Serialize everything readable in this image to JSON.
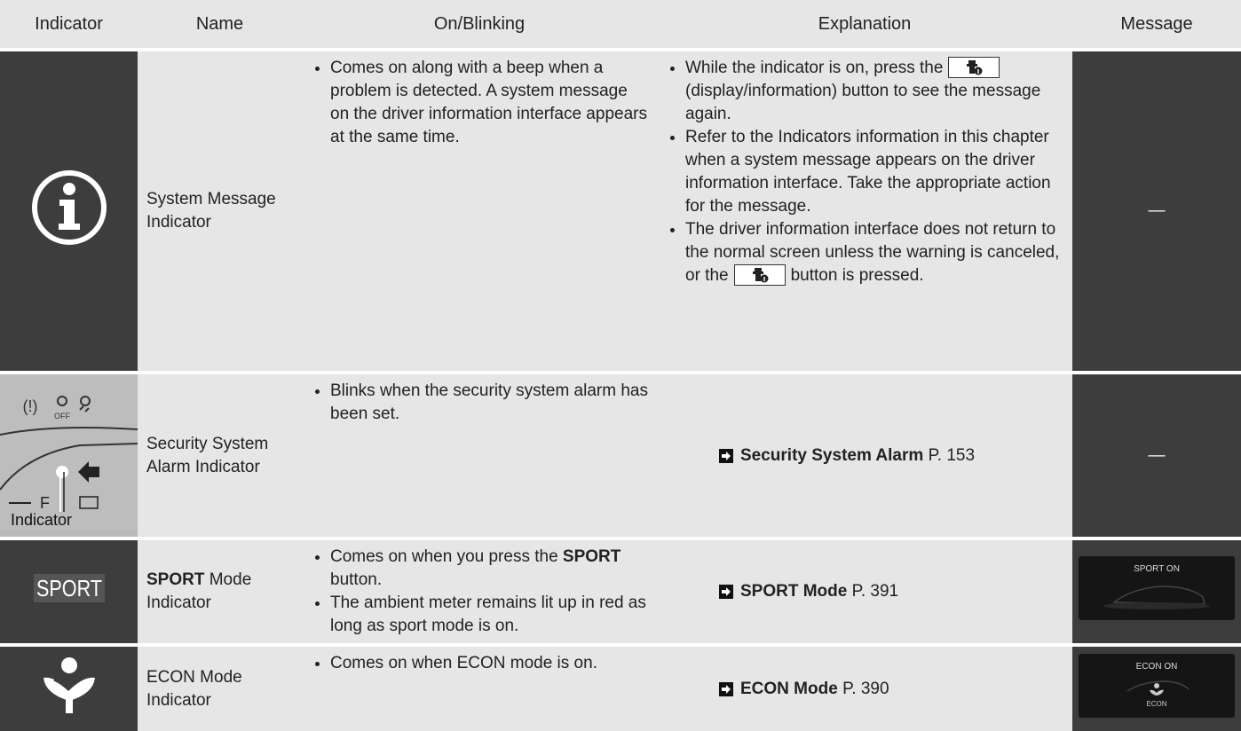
{
  "table": {
    "header": [
      "Indicator",
      "Name",
      "On/Blinking",
      "Explanation",
      "Message"
    ],
    "rows": [
      {
        "name": "System Message Indicator",
        "on_blinking": [
          "Comes on along with a beep when a problem is detected. A system message on the driver information interface appears at the same time."
        ],
        "explanation": [
          [
            "While the indicator is on, press the",
            "(display/information) button to see the message again."
          ],
          [
            "Refer to the Indicators information in this chapter when a system message appears on the driver information interface. Take the appropriate action for the message."
          ],
          [
            "The driver information interface does not return to the normal screen unless the warning is canceled, or the",
            "button is pressed."
          ]
        ],
        "message": "—"
      },
      {
        "indicator": {
          "icon_texts": [
            "OFF",
            "F"
          ],
          "callout": "Indicator"
        },
        "name": "Security System Alarm Indicator",
        "on_blinking": [
          "Blinks when the security system alarm has been set."
        ],
        "reference": {
          "title": "Security System Alarm",
          "page": "P. 153"
        },
        "message": "—"
      },
      {
        "indicator": {
          "text": "SPORT"
        },
        "name": [
          "SPORT",
          " Mode Indicator"
        ],
        "on_blinking": [
          [
            "Comes on when you press the ",
            "SPORT",
            " button."
          ],
          [
            "The ambient meter remains lit up in red as long as sport mode is on."
          ]
        ],
        "reference": {
          "title": "SPORT Mode",
          "page": "P. 391"
        },
        "message": {
          "texts": [
            "SPORT ON"
          ]
        }
      },
      {
        "name": "ECON Mode Indicator",
        "on_blinking": [
          "Comes on when ECON mode is on."
        ],
        "reference": {
          "title": "ECON Mode",
          "page": "P. 390"
        },
        "message": {
          "texts": [
            "ECON ON",
            "ECON"
          ]
        }
      }
    ]
  }
}
